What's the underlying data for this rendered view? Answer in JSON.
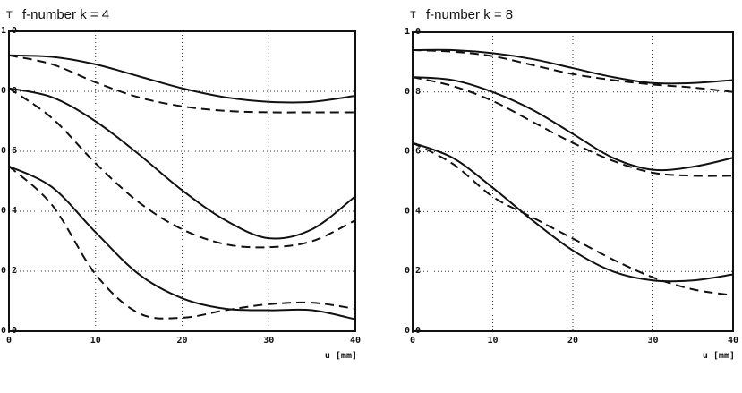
{
  "chart_data": [
    {
      "type": "line",
      "title": "f-number k = 4",
      "y_label": "T",
      "x_label": "u [mm]",
      "x": [
        0,
        5,
        10,
        15,
        20,
        25,
        30,
        35,
        40
      ],
      "series": [
        {
          "color": "#111111",
          "style": "solid",
          "values": [
            0.92,
            0.915,
            0.89,
            0.85,
            0.81,
            0.78,
            0.765,
            0.765,
            0.785
          ]
        },
        {
          "color": "#111111",
          "style": "dashed",
          "values": [
            0.92,
            0.89,
            0.83,
            0.78,
            0.75,
            0.735,
            0.73,
            0.73,
            0.73
          ]
        },
        {
          "color": "#111111",
          "style": "solid",
          "values": [
            0.81,
            0.78,
            0.7,
            0.59,
            0.47,
            0.37,
            0.31,
            0.34,
            0.45
          ]
        },
        {
          "color": "#111111",
          "style": "dashed",
          "values": [
            0.81,
            0.71,
            0.56,
            0.43,
            0.34,
            0.29,
            0.28,
            0.3,
            0.37
          ]
        },
        {
          "color": "#111111",
          "style": "solid",
          "values": [
            0.55,
            0.48,
            0.33,
            0.19,
            0.11,
            0.075,
            0.07,
            0.07,
            0.04
          ]
        },
        {
          "color": "#111111",
          "style": "dashed",
          "values": [
            0.55,
            0.42,
            0.19,
            0.06,
            0.045,
            0.07,
            0.09,
            0.095,
            0.075
          ]
        }
      ],
      "xlim": [
        0,
        40
      ],
      "xticks": [
        0,
        10,
        20,
        30,
        40
      ],
      "ylim": [
        0,
        1
      ],
      "yticks": [
        {
          "value": 0,
          "label": "0.0"
        },
        0.2,
        0.4,
        0.6,
        0.8,
        {
          "value": 1,
          "label": "1.0"
        }
      ],
      "grid": true
    },
    {
      "type": "line",
      "title": "f-number k = 8",
      "y_label": "T",
      "x_label": "u [mm]",
      "x": [
        0,
        5,
        10,
        15,
        20,
        25,
        30,
        35,
        40
      ],
      "series": [
        {
          "color": "#111111",
          "style": "solid",
          "values": [
            0.94,
            0.94,
            0.93,
            0.91,
            0.88,
            0.85,
            0.83,
            0.83,
            0.84
          ]
        },
        {
          "color": "#111111",
          "style": "dashed",
          "values": [
            0.94,
            0.935,
            0.92,
            0.89,
            0.86,
            0.84,
            0.825,
            0.815,
            0.8
          ]
        },
        {
          "color": "#111111",
          "style": "solid",
          "values": [
            0.85,
            0.84,
            0.8,
            0.74,
            0.66,
            0.58,
            0.54,
            0.55,
            0.58
          ]
        },
        {
          "color": "#111111",
          "style": "dashed",
          "values": [
            0.85,
            0.82,
            0.77,
            0.7,
            0.63,
            0.57,
            0.53,
            0.52,
            0.52
          ]
        },
        {
          "color": "#111111",
          "style": "solid",
          "values": [
            0.63,
            0.58,
            0.48,
            0.37,
            0.27,
            0.2,
            0.17,
            0.17,
            0.19
          ]
        },
        {
          "color": "#111111",
          "style": "dashed",
          "values": [
            0.63,
            0.56,
            0.45,
            0.38,
            0.31,
            0.24,
            0.18,
            0.14,
            0.12
          ]
        }
      ],
      "xlim": [
        0,
        40
      ],
      "xticks": [
        0,
        10,
        20,
        30,
        40
      ],
      "ylim": [
        0,
        1
      ],
      "yticks": [
        {
          "value": 0,
          "label": "0.0"
        },
        0.2,
        0.4,
        0.6,
        0.8,
        {
          "value": 1,
          "label": "1.0"
        }
      ],
      "grid": true
    }
  ]
}
